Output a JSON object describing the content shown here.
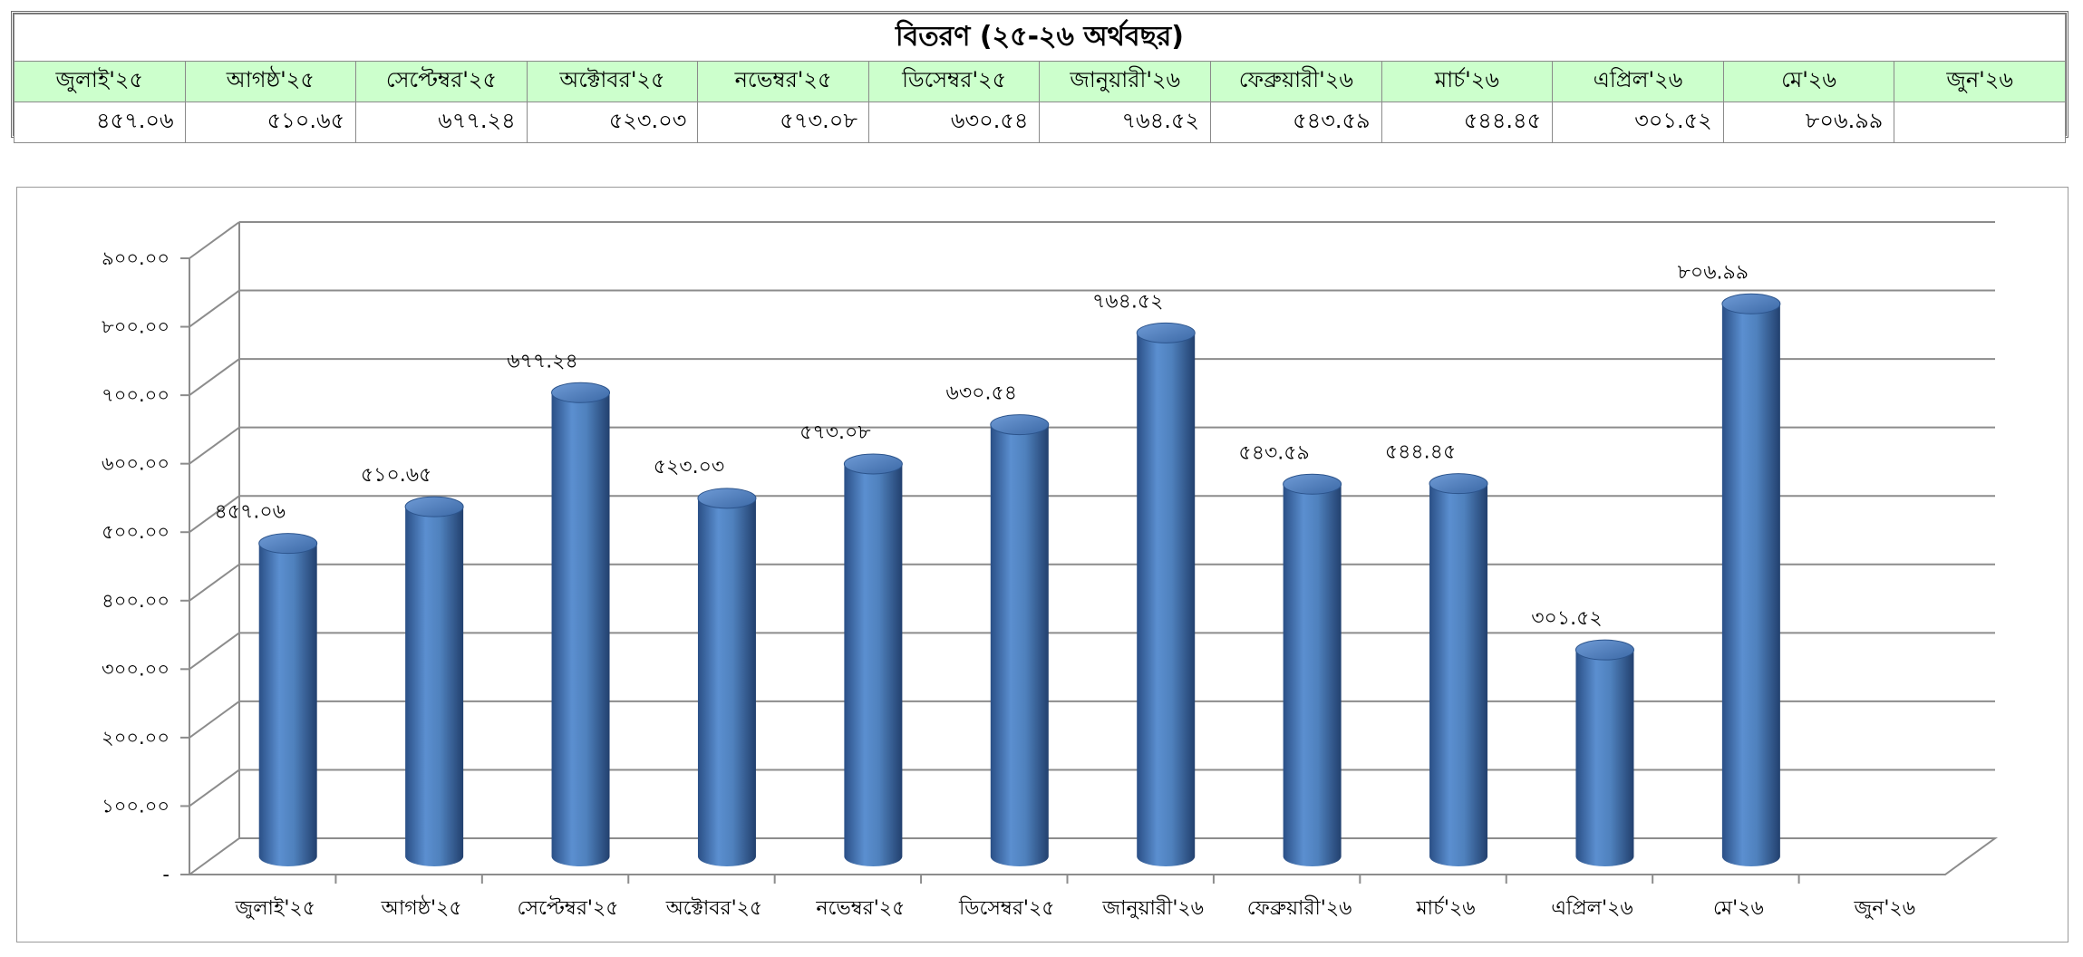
{
  "table": {
    "title": "বিতরণ  (২৫-২৬ অর্থবছর)",
    "months": [
      "জুলাই'২৫",
      "আগষ্ঠ'২৫",
      "সেপ্টেম্বর'২৫",
      "অক্টোবর'২৫",
      "নভেম্বর'২৫",
      "ডিসেম্বর'২৫",
      "জানুয়ারী'২৬",
      "ফেব্রুয়ারী'২৬",
      "মার্চ'২৬",
      "এপ্রিল'২৬",
      "মে'২৬",
      "জুন'২৬"
    ],
    "values": [
      "৪৫৭.০৬",
      "৫১০.৬৫",
      "৬৭৭.২৪",
      "৫২৩.০৩",
      "৫৭৩.০৮",
      "৬৩০.৫৪",
      "৭৬৪.৫২",
      "৫৪৩.৫৯",
      "৫৪৪.৪৫",
      "৩০১.৫২",
      "৮০৬.৯৯",
      ""
    ]
  },
  "chart_data": {
    "type": "bar",
    "style": "3d-cylinder",
    "categories": [
      "জুলাই'২৫",
      "আগষ্ঠ'২৫",
      "সেপ্টেম্বর'২৫",
      "অক্টোবর'২৫",
      "নভেম্বর'২৫",
      "ডিসেম্বর'২৫",
      "জানুয়ারী'২৬",
      "ফেব্রুয়ারী'২৬",
      "মার্চ'২৬",
      "এপ্রিল'২৬",
      "মে'২৬",
      "জুন'২৬"
    ],
    "values": [
      457.06,
      510.65,
      677.24,
      523.03,
      573.08,
      630.54,
      764.52,
      543.59,
      544.45,
      301.52,
      806.99,
      null
    ],
    "data_labels": [
      "৪৫৭.০৬",
      "৫১০.৬৫",
      "৬৭৭.২৪",
      "৫২৩.০৩",
      "৫৭৩.০৮",
      "৬৩০.৫৪",
      "৭৬৪.৫২",
      "৫৪৩.৫৯",
      "৫৪৪.৪৫",
      "৩০১.৫২",
      "৮০৬.৯৯",
      ""
    ],
    "y_tick_labels": [
      "-",
      "১০০.০০",
      "২০০.০০",
      "৩০০.০০",
      "৪০০.০০",
      "৫০০.০০",
      "৬০০.০০",
      "৭০০.০০",
      "৮০০.০০",
      "৯০০.০০"
    ],
    "ylim": [
      0,
      900
    ],
    "grid": true,
    "legend": "none",
    "bar_color": "#4f81bd"
  }
}
